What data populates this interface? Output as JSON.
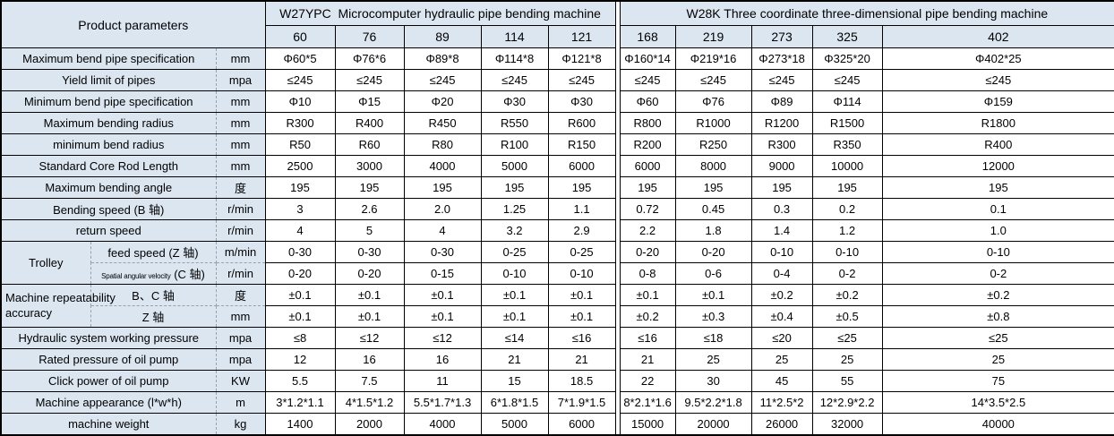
{
  "colors": {
    "header_bg": "#dce6f1",
    "cell_bg": "#ffffff",
    "border": "#000000",
    "dashed_grid": "#97a0ac"
  },
  "header": {
    "corner": "Product parameters",
    "left": {
      "title": "W27YPC  Microcomputer hydraulic pipe bending machine",
      "models": [
        "60",
        "76",
        "89",
        "114",
        "121"
      ]
    },
    "right": {
      "title": "W28K Three coordinate three-dimensional pipe bending machine",
      "models": [
        "168",
        "219",
        "273",
        "325",
        "402"
      ]
    }
  },
  "rows": [
    {
      "label": "Maximum bend pipe specification",
      "unit": "mm",
      "values": [
        "Φ60*5",
        "Φ76*6",
        "Φ89*8",
        "Φ114*8",
        "Φ121*8",
        "Φ160*14",
        "Φ219*16",
        "Φ273*18",
        "Φ325*20",
        "Φ402*25"
      ]
    },
    {
      "label": "Yield limit of pipes",
      "unit": "mpa",
      "values": [
        "≤245",
        "≤245",
        "≤245",
        "≤245",
        "≤245",
        "≤245",
        "≤245",
        "≤245",
        "≤245",
        "≤245"
      ]
    },
    {
      "label": "Minimum bend pipe specification",
      "unit": "mm",
      "values": [
        "Φ10",
        "Φ15",
        "Φ20",
        "Φ30",
        "Φ30",
        "Φ60",
        "Φ76",
        "Φ89",
        "Φ114",
        "Φ159"
      ]
    },
    {
      "label": "Maximum bending radius",
      "unit": "mm",
      "values": [
        "R300",
        "R400",
        "R450",
        "R550",
        "R600",
        "R800",
        "R1000",
        "R1200",
        "R1500",
        "R1800"
      ]
    },
    {
      "label": "minimum bend radius",
      "unit": "mm",
      "values": [
        "R50",
        "R60",
        "R80",
        "R100",
        "R150",
        "R200",
        "R250",
        "R300",
        "R350",
        "R400"
      ]
    },
    {
      "label": "Standard Core Rod Length",
      "unit": "mm",
      "values": [
        "2500",
        "3000",
        "4000",
        "5000",
        "6000",
        "6000",
        "8000",
        "9000",
        "10000",
        "12000"
      ]
    },
    {
      "label": "Maximum bending angle",
      "unit": "度",
      "values": [
        "195",
        "195",
        "195",
        "195",
        "195",
        "195",
        "195",
        "195",
        "195",
        "195"
      ]
    },
    {
      "label": "Bending speed (B 轴)",
      "unit": "r/min",
      "values": [
        "3",
        "2.6",
        "2.0",
        "1.25",
        "1.1",
        "0.72",
        "0.45",
        "0.3",
        "0.2",
        "0.1"
      ]
    },
    {
      "label": "return speed",
      "unit": "r/min",
      "values": [
        "4",
        "5",
        "4",
        "3.2",
        "2.9",
        "2.2",
        "1.8",
        "1.4",
        "1.2",
        "1.0"
      ]
    },
    {
      "group": "Trolley",
      "group_span": 2,
      "sub": true,
      "label": "feed speed (Z 轴)",
      "unit": "m/min",
      "values": [
        "0-30",
        "0-30",
        "0-30",
        "0-25",
        "0-25",
        "0-20",
        "0-20",
        "0-10",
        "0-10",
        "0-10"
      ]
    },
    {
      "sub": true,
      "label_small": "Spatial angular velocity",
      "label": "(C 轴)",
      "unit": "r/min",
      "values": [
        "0-20",
        "0-20",
        "0-15",
        "0-10",
        "0-10",
        "0-8",
        "0-6",
        "0-4",
        "0-2",
        "0-2"
      ]
    },
    {
      "group": "Machine repeatability accuracy",
      "group_span": 2,
      "group_overflow": true,
      "sub": true,
      "label": "B、C 轴",
      "unit": "度",
      "values": [
        "±0.1",
        "±0.1",
        "±0.1",
        "±0.1",
        "±0.1",
        "±0.1",
        "±0.1",
        "±0.2",
        "±0.2",
        "±0.2"
      ]
    },
    {
      "sub": true,
      "label": "Z 轴",
      "unit": "mm",
      "values": [
        "±0.1",
        "±0.1",
        "±0.1",
        "±0.1",
        "±0.1",
        "±0.2",
        "±0.3",
        "±0.4",
        "±0.5",
        "±0.8"
      ]
    },
    {
      "label": "Hydraulic system working pressure",
      "unit": "mpa",
      "values": [
        "≤8",
        "≤12",
        "≤12",
        "≤14",
        "≤16",
        "≤16",
        "≤18",
        "≤20",
        "≤25",
        "≤25"
      ]
    },
    {
      "label": "Rated pressure of oil pump",
      "unit": "mpa",
      "values": [
        "12",
        "16",
        "16",
        "21",
        "21",
        "21",
        "25",
        "25",
        "25",
        "25"
      ]
    },
    {
      "label": "Click power of oil pump",
      "unit": "KW",
      "values": [
        "5.5",
        "7.5",
        "11",
        "15",
        "18.5",
        "22",
        "30",
        "45",
        "55",
        "75"
      ]
    },
    {
      "label": "Machine appearance (l*w*h)",
      "unit": "m",
      "values": [
        "3*1.2*1.1",
        "4*1.5*1.2",
        "5.5*1.7*1.3",
        "6*1.8*1.5",
        "7*1.9*1.5",
        "8*2.1*1.6",
        "9.5*2.2*1.8",
        "11*2.5*2",
        "12*2.9*2.2",
        "14*3.5*2.5"
      ]
    },
    {
      "label": "machine weight",
      "unit": "kg",
      "values": [
        "1400",
        "2000",
        "4000",
        "5000",
        "6000",
        "15000",
        "20000",
        "26000",
        "32000",
        "40000"
      ]
    }
  ]
}
